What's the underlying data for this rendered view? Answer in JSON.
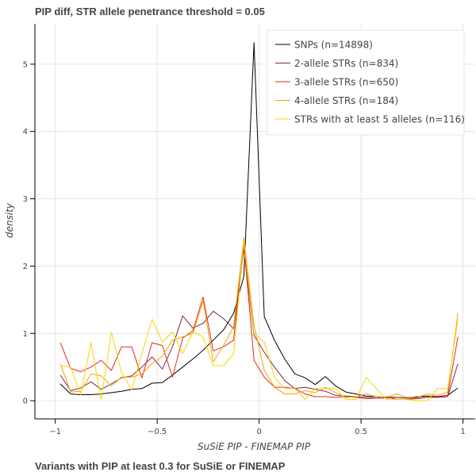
{
  "chart_data": {
    "type": "line",
    "title": "PIP diff, STR allele penetrance threshold = 0.05",
    "footer": "Variants with PIP at least 0.3 for SuSiE or FINEMAP",
    "xlabel": "SuSiE PIP - FINEMAP PIP",
    "ylabel": "density",
    "xlim": [
      -1.1,
      1.06
    ],
    "ylim": [
      -0.27,
      5.6
    ],
    "xticks": [
      -1,
      -0.5,
      0,
      0.5,
      1
    ],
    "xtick_labels": [
      "−1",
      "−0.5",
      "0",
      "0.5",
      "1"
    ],
    "yticks": [
      0,
      1,
      2,
      3,
      4,
      5
    ],
    "ytick_labels": [
      "0",
      "1",
      "2",
      "3",
      "4",
      "5"
    ],
    "grid": true,
    "legend_position": "top-right",
    "x": [
      -0.975,
      -0.925,
      -0.875,
      -0.825,
      -0.775,
      -0.725,
      -0.675,
      -0.625,
      -0.575,
      -0.525,
      -0.475,
      -0.425,
      -0.375,
      -0.325,
      -0.275,
      -0.225,
      -0.175,
      -0.125,
      -0.075,
      -0.025,
      0.025,
      0.075,
      0.125,
      0.175,
      0.225,
      0.275,
      0.325,
      0.375,
      0.425,
      0.475,
      0.525,
      0.575,
      0.625,
      0.675,
      0.725,
      0.775,
      0.825,
      0.875,
      0.925,
      0.975
    ],
    "series": [
      {
        "name": "SNPs (n=14898)",
        "color": "#000000",
        "values": [
          0.25,
          0.1,
          0.09,
          0.09,
          0.1,
          0.12,
          0.14,
          0.17,
          0.18,
          0.26,
          0.27,
          0.38,
          0.5,
          0.62,
          0.75,
          0.9,
          1.05,
          1.3,
          1.85,
          5.32,
          1.25,
          0.9,
          0.62,
          0.4,
          0.34,
          0.24,
          0.36,
          0.22,
          0.13,
          0.1,
          0.07,
          0.06,
          0.05,
          0.05,
          0.04,
          0.06,
          0.07,
          0.06,
          0.08,
          0.19
        ]
      },
      {
        "name": "2-allele STRs (n=834)",
        "color": "#7b2b48",
        "values": [
          0.38,
          0.15,
          0.19,
          0.28,
          0.17,
          0.25,
          0.34,
          0.37,
          0.5,
          0.65,
          0.47,
          0.8,
          1.26,
          1.08,
          1.15,
          1.33,
          1.22,
          1.07,
          2.25,
          0.97,
          0.72,
          0.5,
          0.3,
          0.18,
          0.2,
          0.17,
          0.14,
          0.08,
          0.07,
          0.06,
          0.05,
          0.04,
          0.04,
          0.05,
          0.04,
          0.04,
          0.05,
          0.05,
          0.06,
          0.55
        ]
      },
      {
        "name": "3-allele STRs (n=650)",
        "color": "#e8271c",
        "values": [
          0.86,
          0.48,
          0.43,
          0.5,
          0.6,
          0.45,
          0.8,
          0.8,
          0.34,
          0.86,
          0.82,
          0.35,
          0.93,
          1.04,
          1.54,
          0.74,
          0.8,
          0.9,
          2.32,
          0.6,
          0.35,
          0.2,
          0.2,
          0.18,
          0.1,
          0.06,
          0.06,
          0.05,
          0.06,
          0.05,
          0.03,
          0.04,
          0.06,
          0.02,
          0.02,
          0.03,
          0.05,
          0.05,
          0.08,
          0.95
        ]
      },
      {
        "name": "4-allele STRs (n=184)",
        "color": "#f5a400",
        "values": [
          0.55,
          0.13,
          0.14,
          0.4,
          0.37,
          0.22,
          0.35,
          0.35,
          0.4,
          0.55,
          0.66,
          0.9,
          0.95,
          1.0,
          1.48,
          0.58,
          0.82,
          1.1,
          2.42,
          1.12,
          0.45,
          0.2,
          0.1,
          0.1,
          0.15,
          0.12,
          0.2,
          0.12,
          0.05,
          0.06,
          0.1,
          0.06,
          0.05,
          0.1,
          0.05,
          0.05,
          0.1,
          0.08,
          0.13,
          1.3
        ]
      },
      {
        "name": "STRs with at least 5 alleles (n=116)",
        "color": "#f5d60c",
        "values": [
          0.52,
          0.5,
          0.09,
          0.86,
          0.02,
          1.02,
          0.42,
          0.16,
          0.7,
          1.21,
          0.87,
          1.02,
          0.7,
          1.02,
          0.95,
          0.52,
          0.52,
          0.7,
          2.38,
          1.0,
          0.87,
          0.35,
          0.18,
          0.18,
          0.02,
          0.18,
          0.18,
          0.18,
          0.02,
          0.02,
          0.35,
          0.18,
          0.02,
          0.02,
          0.02,
          0.0,
          0.0,
          0.18,
          0.18,
          1.21
        ]
      }
    ]
  }
}
